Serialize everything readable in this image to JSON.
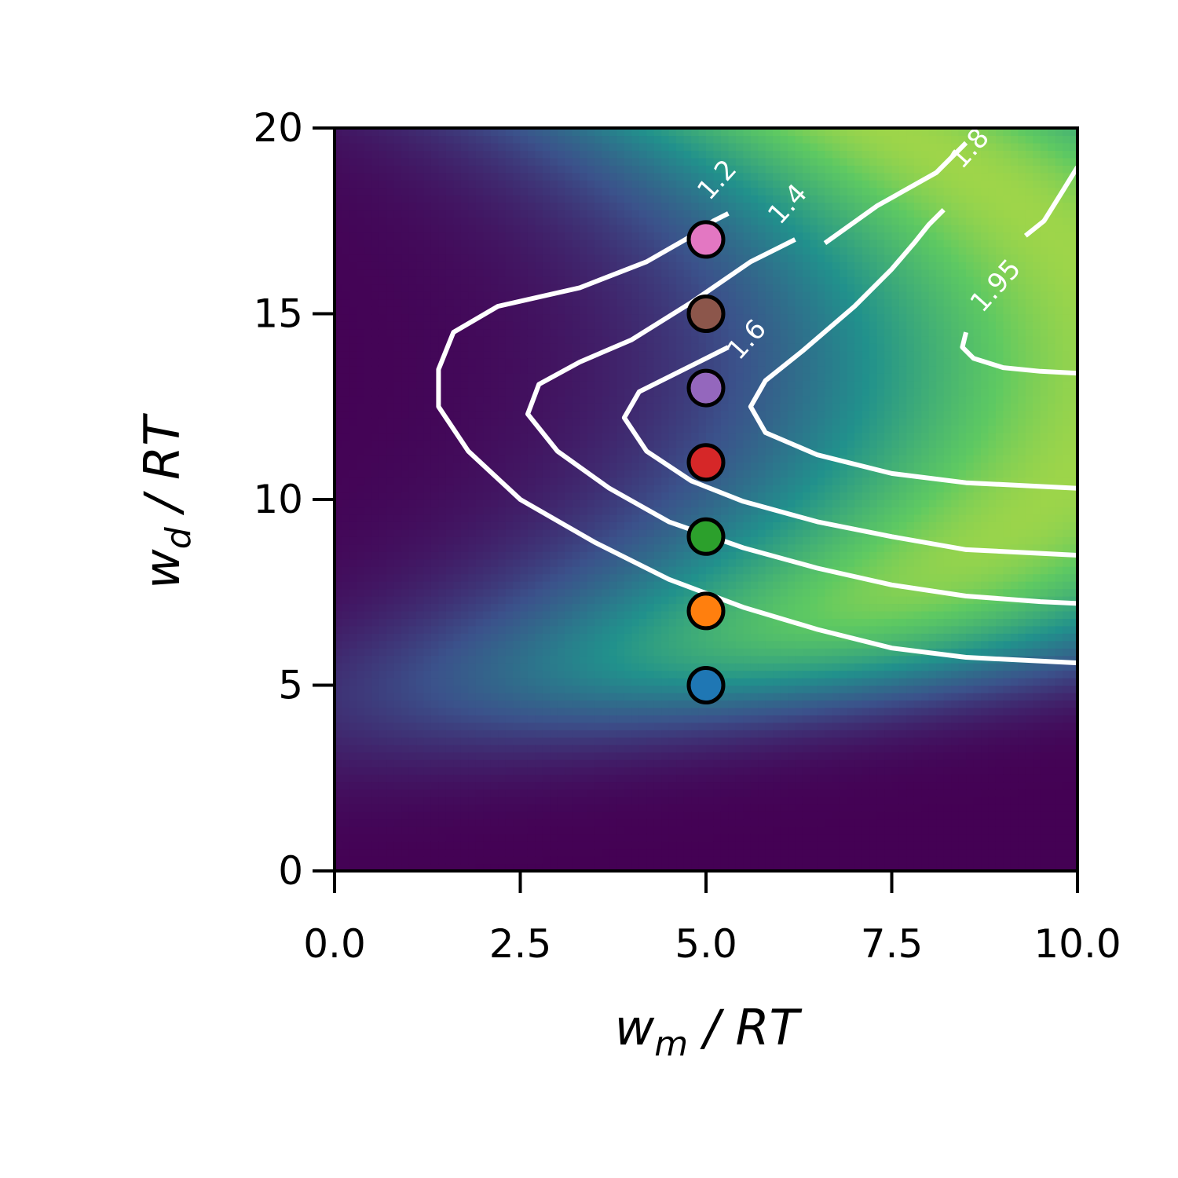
{
  "chart_data": {
    "type": "heatmap",
    "title": "",
    "xlabel": {
      "base": "w",
      "sub": "m",
      "rest": " / RT"
    },
    "ylabel": {
      "base": "w",
      "sub": "d",
      "rest": " / RT"
    },
    "xlim": [
      0,
      10
    ],
    "ylim": [
      0,
      20
    ],
    "x_ticks": [
      0.0,
      2.5,
      5.0,
      7.5,
      10.0
    ],
    "x_tick_labels": [
      "0.0",
      "2.5",
      "5.0",
      "7.5",
      "10.0"
    ],
    "y_ticks": [
      0,
      5,
      10,
      15,
      20
    ],
    "y_tick_labels": [
      "0",
      "5",
      "10",
      "15",
      "20"
    ],
    "colormap": "viridis",
    "grid": false,
    "contour_color": "#ffffff",
    "contours": [
      {
        "level": "1.2",
        "label_at": [
          5.15,
          18.6
        ],
        "points": [
          [
            10,
            5.6
          ],
          [
            9.5,
            5.65
          ],
          [
            8.5,
            5.75
          ],
          [
            7.5,
            6.0
          ],
          [
            6.5,
            6.5
          ],
          [
            5.5,
            7.1
          ],
          [
            4.5,
            7.85
          ],
          [
            3.5,
            8.85
          ],
          [
            2.5,
            10.0
          ],
          [
            1.8,
            11.3
          ],
          [
            1.4,
            12.5
          ],
          [
            1.4,
            13.5
          ],
          [
            1.6,
            14.5
          ],
          [
            2.2,
            15.2
          ],
          [
            3.3,
            15.7
          ],
          [
            4.2,
            16.4
          ],
          [
            4.9,
            17.2
          ],
          [
            5.1,
            17.5
          ],
          [
            5.3,
            17.7
          ]
        ]
      },
      {
        "level": "1.4",
        "label_at": [
          6.1,
          17.95
        ],
        "points": [
          [
            10,
            7.2
          ],
          [
            9.5,
            7.25
          ],
          [
            8.5,
            7.4
          ],
          [
            7.5,
            7.7
          ],
          [
            6.5,
            8.15
          ],
          [
            5.5,
            8.7
          ],
          [
            4.5,
            9.4
          ],
          [
            3.7,
            10.3
          ],
          [
            3.0,
            11.3
          ],
          [
            2.6,
            12.3
          ],
          [
            2.75,
            13.1
          ],
          [
            3.3,
            13.7
          ],
          [
            4.0,
            14.3
          ],
          [
            4.8,
            15.3
          ],
          [
            5.6,
            16.4
          ],
          [
            6.0,
            16.8
          ],
          [
            6.2,
            17.0
          ]
        ]
      },
      {
        "level": "1.6",
        "label_at": [
          5.55,
          14.3
        ],
        "points": [
          [
            10,
            8.5
          ],
          [
            9.5,
            8.55
          ],
          [
            8.5,
            8.65
          ],
          [
            7.5,
            9.0
          ],
          [
            6.5,
            9.4
          ],
          [
            5.5,
            9.95
          ],
          [
            4.8,
            10.5
          ],
          [
            4.2,
            11.3
          ],
          [
            3.9,
            12.2
          ],
          [
            4.1,
            12.9
          ],
          [
            4.6,
            13.4
          ],
          [
            5.0,
            13.8
          ],
          [
            5.2,
            14.0
          ],
          [
            5.3,
            14.1
          ]
        ]
      },
      {
        "level": "1.6",
        "label_at": null,
        "points": [
          [
            6.6,
            16.9
          ],
          [
            7.3,
            17.9
          ],
          [
            8.1,
            18.8
          ],
          [
            8.45,
            19.5
          ],
          [
            8.5,
            19.6
          ]
        ]
      },
      {
        "level": "1.8",
        "label_at": [
          8.55,
          19.45
        ],
        "points": [
          [
            10,
            10.3
          ],
          [
            9.5,
            10.35
          ],
          [
            8.5,
            10.45
          ],
          [
            7.5,
            10.7
          ],
          [
            6.5,
            11.2
          ],
          [
            5.8,
            11.8
          ],
          [
            5.6,
            12.5
          ],
          [
            5.8,
            13.2
          ],
          [
            6.3,
            14.0
          ],
          [
            7.0,
            15.2
          ],
          [
            7.5,
            16.2
          ],
          [
            7.8,
            16.9
          ],
          [
            8.0,
            17.4
          ],
          [
            8.2,
            17.8
          ]
        ]
      },
      {
        "level": "1.95",
        "label_at": [
          8.9,
          15.75
        ],
        "points": [
          [
            10,
            13.4
          ],
          [
            9.5,
            13.45
          ],
          [
            9.0,
            13.55
          ],
          [
            8.6,
            13.8
          ],
          [
            8.45,
            14.1
          ],
          [
            8.5,
            14.5
          ]
        ]
      },
      {
        "level": "1.95",
        "label_at": null,
        "points": [
          [
            9.3,
            17.1
          ],
          [
            9.55,
            17.5
          ],
          [
            9.8,
            18.3
          ],
          [
            10,
            18.95
          ]
        ]
      }
    ],
    "points": [
      {
        "x": 5,
        "y": 5,
        "color": "#1f77b4"
      },
      {
        "x": 5,
        "y": 7,
        "color": "#ff7f0e"
      },
      {
        "x": 5,
        "y": 9,
        "color": "#2ca02c"
      },
      {
        "x": 5,
        "y": 11,
        "color": "#d62728"
      },
      {
        "x": 5,
        "y": 13,
        "color": "#9467bd"
      },
      {
        "x": 5,
        "y": 15,
        "color": "#8c564b"
      },
      {
        "x": 5,
        "y": 17,
        "color": "#e377c2"
      }
    ],
    "marker_edge_color": "#000000"
  }
}
